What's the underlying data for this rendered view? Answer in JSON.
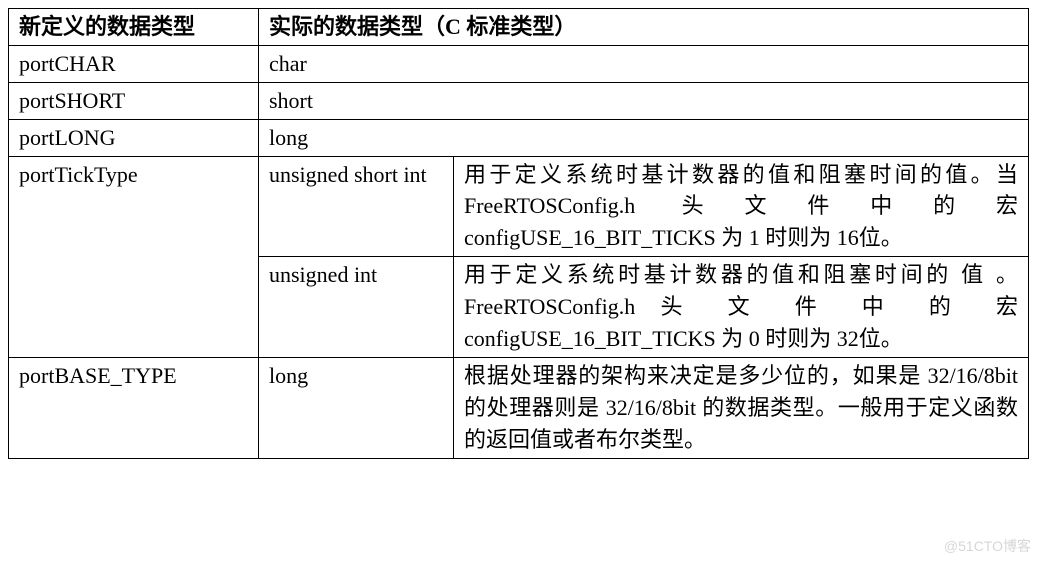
{
  "table": {
    "header": {
      "col1": "新定义的数据类型",
      "col2": "实际的数据类型（C 标准类型）"
    },
    "rows": {
      "portCHAR": {
        "name": "portCHAR",
        "ctype": "char"
      },
      "portSHORT": {
        "name": "portSHORT",
        "ctype": "short"
      },
      "portLONG": {
        "name": "portLONG",
        "ctype": "long"
      },
      "portTickType": {
        "name": "portTickType",
        "sub1": {
          "ctype": "unsigned short  int",
          "desc": "用于定义系统时基计数器的值和阻塞时间的值。当 FreeRTOSConfig.h 头文件中的宏configUSE_16_BIT_TICKS 为 1 时则为 16位。"
        },
        "sub2": {
          "ctype": "unsigned  int",
          "desc": "用于定义系统时基计数器的值和阻塞时间的 值 。 FreeRTOSConfig.h 头 文 件 中 的 宏configUSE_16_BIT_TICKS 为 0 时则为 32位。"
        }
      },
      "portBASE_TYPE": {
        "name": "portBASE_TYPE",
        "ctype": "long",
        "desc": "根据处理器的架构来决定是多少位的，如果是 32/16/8bit 的处理器则是 32/16/8bit 的数据类型。一般用于定义函数的返回值或者布尔类型。"
      }
    }
  },
  "watermark": "@51CTO博客"
}
